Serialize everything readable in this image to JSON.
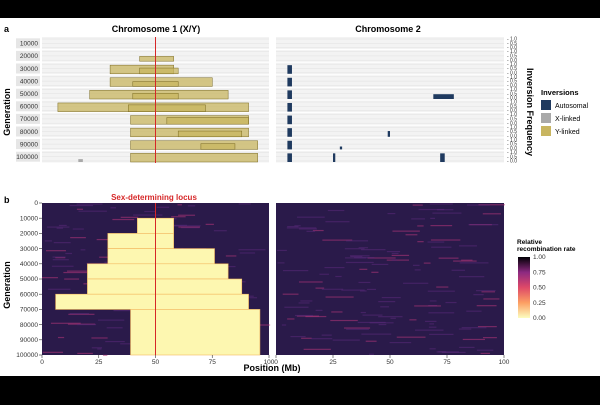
{
  "figure": {
    "panel_a": "a",
    "panel_b": "b",
    "chrom1_title": "Chromosome 1 (X/Y)",
    "chrom2_title": "Chromosome 2",
    "ylabel": "Generation",
    "xlabel": "Position (Mb)",
    "right_axis_label": "Inversion Frequency",
    "sex_locus_label": "Sex-determining locus",
    "colors": {
      "autosomal": "#1f3a5f",
      "x_linked": "#a9a9a9",
      "y_linked": "#c8b560",
      "sex_line": "#d62728",
      "heat_bg": "#2a1a4a"
    }
  },
  "chart_data": [
    {
      "type": "bar",
      "panel": "a",
      "title": "Chromosome 1 (X/Y)",
      "xlabel": "",
      "ylabel": "Generation",
      "y2label": "Inversion Frequency",
      "xlim": [
        0,
        100
      ],
      "generations": [
        10000,
        20000,
        30000,
        40000,
        50000,
        60000,
        70000,
        80000,
        90000,
        100000
      ],
      "frequency_ticks": [
        "0.0",
        "0.5",
        "1.0"
      ],
      "sex_locus_position": 50,
      "inversions": [
        {
          "gen": 20000,
          "start": 43,
          "end": 58,
          "type": "Y-linked",
          "freq": 0.5
        },
        {
          "gen": 30000,
          "start": 30,
          "end": 58,
          "type": "Y-linked",
          "freq": 0.9
        },
        {
          "gen": 30000,
          "start": 43,
          "end": 60,
          "type": "Y-linked",
          "freq": 0.6
        },
        {
          "gen": 40000,
          "start": 30,
          "end": 75,
          "type": "Y-linked",
          "freq": 0.9
        },
        {
          "gen": 40000,
          "start": 40,
          "end": 60,
          "type": "Y-linked",
          "freq": 0.5
        },
        {
          "gen": 50000,
          "start": 21,
          "end": 82,
          "type": "Y-linked",
          "freq": 0.9
        },
        {
          "gen": 50000,
          "start": 40,
          "end": 60,
          "type": "Y-linked",
          "freq": 0.6
        },
        {
          "gen": 60000,
          "start": 7,
          "end": 91,
          "type": "Y-linked",
          "freq": 0.9
        },
        {
          "gen": 60000,
          "start": 38,
          "end": 72,
          "type": "Y-linked",
          "freq": 0.7
        },
        {
          "gen": 70000,
          "start": 39,
          "end": 91,
          "type": "Y-linked",
          "freq": 0.9
        },
        {
          "gen": 70000,
          "start": 55,
          "end": 91,
          "type": "Y-linked",
          "freq": 0.7
        },
        {
          "gen": 80000,
          "start": 39,
          "end": 91,
          "type": "Y-linked",
          "freq": 0.9
        },
        {
          "gen": 80000,
          "start": 60,
          "end": 88,
          "type": "Y-linked",
          "freq": 0.6
        },
        {
          "gen": 90000,
          "start": 39,
          "end": 95,
          "type": "Y-linked",
          "freq": 0.9
        },
        {
          "gen": 90000,
          "start": 70,
          "end": 85,
          "type": "Y-linked",
          "freq": 0.6
        },
        {
          "gen": 100000,
          "start": 39,
          "end": 95,
          "type": "Y-linked",
          "freq": 0.9
        },
        {
          "gen": 100000,
          "start": 16,
          "end": 18,
          "type": "X-linked",
          "freq": 0.3
        }
      ]
    },
    {
      "type": "bar",
      "panel": "a",
      "title": "Chromosome 2",
      "xlim": [
        0,
        100
      ],
      "inversions": [
        {
          "gen": 30000,
          "start": 5,
          "end": 7,
          "type": "Autosomal",
          "freq": 0.9
        },
        {
          "gen": 40000,
          "start": 5,
          "end": 7,
          "type": "Autosomal",
          "freq": 0.9
        },
        {
          "gen": 50000,
          "start": 5,
          "end": 7,
          "type": "Autosomal",
          "freq": 0.9
        },
        {
          "gen": 50000,
          "start": 69,
          "end": 78,
          "type": "Autosomal",
          "freq": 0.5
        },
        {
          "gen": 60000,
          "start": 5,
          "end": 7,
          "type": "Autosomal",
          "freq": 0.9
        },
        {
          "gen": 70000,
          "start": 5,
          "end": 7,
          "type": "Autosomal",
          "freq": 0.9
        },
        {
          "gen": 80000,
          "start": 5,
          "end": 7,
          "type": "Autosomal",
          "freq": 0.9
        },
        {
          "gen": 80000,
          "start": 49,
          "end": 50,
          "type": "Autosomal",
          "freq": 0.6
        },
        {
          "gen": 90000,
          "start": 5,
          "end": 7,
          "type": "Autosomal",
          "freq": 0.9
        },
        {
          "gen": 90000,
          "start": 28,
          "end": 29,
          "type": "Autosomal",
          "freq": 0.3
        },
        {
          "gen": 100000,
          "start": 5,
          "end": 7,
          "type": "Autosomal",
          "freq": 0.9
        },
        {
          "gen": 100000,
          "start": 25,
          "end": 26,
          "type": "Autosomal",
          "freq": 0.9
        },
        {
          "gen": 100000,
          "start": 72,
          "end": 74,
          "type": "Autosomal",
          "freq": 0.9
        }
      ]
    },
    {
      "type": "heatmap",
      "panel": "b",
      "title": "",
      "xlabel": "Position (Mb)",
      "ylabel": "Generation",
      "xlim": [
        0,
        100
      ],
      "ylim": [
        0,
        100000
      ],
      "x_ticks": [
        "0",
        "25",
        "50",
        "75",
        "100"
      ],
      "y_ticks": [
        "0",
        "10000",
        "20000",
        "30000",
        "40000",
        "50000",
        "60000",
        "70000",
        "80000",
        "90000",
        "100000"
      ],
      "legend_title": "Relative\nrecombination rate",
      "legend_ticks": [
        "1.00",
        "0.75",
        "0.50",
        "0.25",
        "0.00"
      ],
      "legend_placement": "right",
      "non_recombining_region_chrom1": [
        {
          "gen_from": 10000,
          "gen_to": 20000,
          "start": 42,
          "end": 58
        },
        {
          "gen_from": 20000,
          "gen_to": 30000,
          "start": 29,
          "end": 58
        },
        {
          "gen_from": 30000,
          "gen_to": 40000,
          "start": 29,
          "end": 76
        },
        {
          "gen_from": 40000,
          "gen_to": 50000,
          "start": 20,
          "end": 82
        },
        {
          "gen_from": 50000,
          "gen_to": 60000,
          "start": 20,
          "end": 88
        },
        {
          "gen_from": 60000,
          "gen_to": 70000,
          "start": 6,
          "end": 91
        },
        {
          "gen_from": 70000,
          "gen_to": 100000,
          "start": 39,
          "end": 96
        }
      ]
    }
  ],
  "legend": {
    "title": "Inversions",
    "items": [
      {
        "label": "Autosomal",
        "color": "#1f3a5f"
      },
      {
        "label": "X-linked",
        "color": "#a9a9a9"
      },
      {
        "label": "Y-linked",
        "color": "#c8b560"
      }
    ]
  }
}
